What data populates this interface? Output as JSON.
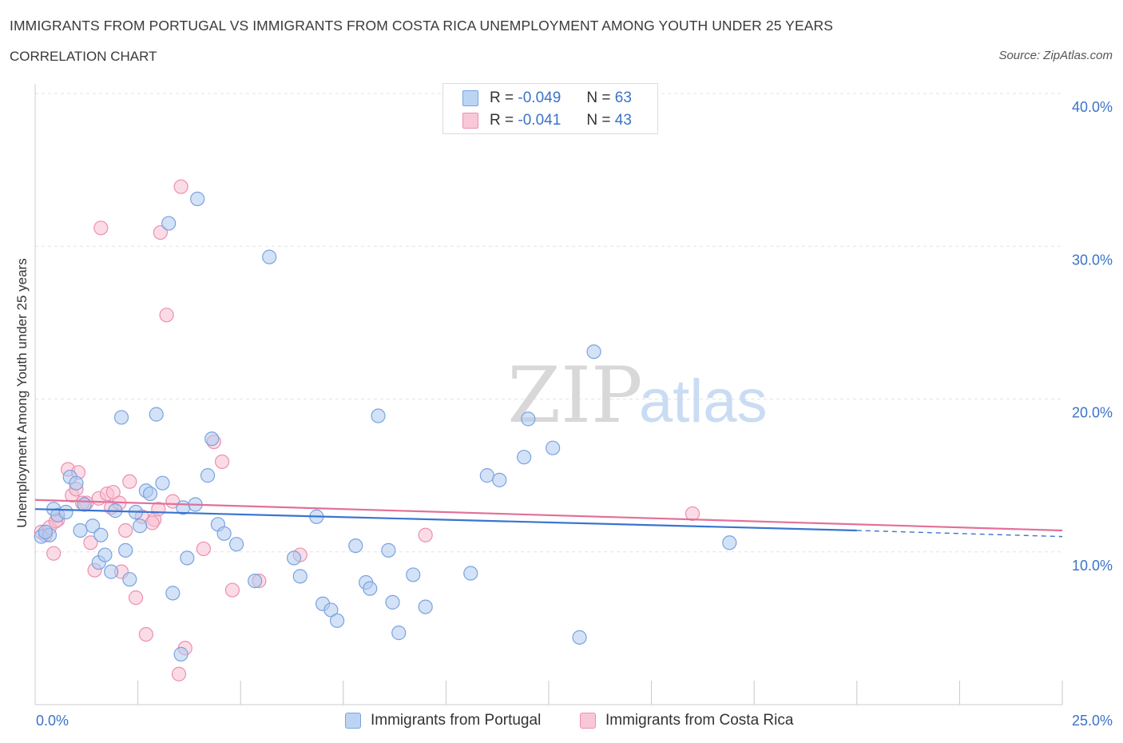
{
  "header": {
    "title": "IMMIGRANTS FROM PORTUGAL VS IMMIGRANTS FROM COSTA RICA UNEMPLOYMENT AMONG YOUTH UNDER 25 YEARS",
    "subtitle": "CORRELATION CHART",
    "source": "Source: ZipAtlas.com"
  },
  "legend_stats": {
    "blue": {
      "r_label": "R =",
      "r_value": "-0.049",
      "n_label": "N =",
      "n_value": "63"
    },
    "pink": {
      "r_label": "R =",
      "r_value": "-0.041",
      "n_label": "N =",
      "n_value": "43"
    }
  },
  "bottom_legend": {
    "blue": "Immigrants from Portugal",
    "pink": "Immigrants from Costa Rica"
  },
  "colors": {
    "blue_fill": "#aecbf0",
    "blue_stroke": "#7aa3e0",
    "blue_line": "#3a74d0",
    "pink_fill": "#f7bfd1",
    "pink_stroke": "#ec8fae",
    "pink_line": "#e2709a",
    "axis_text": "#3b73c8"
  },
  "chart_data": {
    "type": "scatter",
    "title": "IMMIGRANTS FROM PORTUGAL VS IMMIGRANTS FROM COSTA RICA UNEMPLOYMENT AMONG YOUTH UNDER 25 YEARS",
    "xlabel": "",
    "ylabel": "Unemployment Among Youth under 25 years",
    "xlim": [
      0,
      25
    ],
    "ylim": [
      0,
      40
    ],
    "x_tick_labels": [
      "0.0%",
      "25.0%"
    ],
    "y_ticks": [
      10,
      20,
      30,
      40
    ],
    "y_tick_labels": [
      "10.0%",
      "20.0%",
      "30.0%",
      "40.0%"
    ],
    "grid": true,
    "legend_position": "top-center",
    "watermark": "ZIPatlas",
    "series": [
      {
        "name": "Immigrants from Portugal",
        "color": "blue",
        "trend": {
          "x": [
            0,
            20
          ],
          "y": [
            12.8,
            11.4
          ],
          "dashed_extension_to": 25,
          "dashed_y_end": 11.0
        },
        "points": [
          [
            0.15,
            11.0
          ],
          [
            0.35,
            11.1
          ],
          [
            0.45,
            12.8
          ],
          [
            0.55,
            12.4
          ],
          [
            0.75,
            12.6
          ],
          [
            0.85,
            14.9
          ],
          [
            1.0,
            14.5
          ],
          [
            1.1,
            11.4
          ],
          [
            1.2,
            13.1
          ],
          [
            1.4,
            11.7
          ],
          [
            1.55,
            9.3
          ],
          [
            1.6,
            11.1
          ],
          [
            1.7,
            9.8
          ],
          [
            1.85,
            8.7
          ],
          [
            1.95,
            12.7
          ],
          [
            2.1,
            18.8
          ],
          [
            2.2,
            10.1
          ],
          [
            2.3,
            8.2
          ],
          [
            2.45,
            12.6
          ],
          [
            2.55,
            11.7
          ],
          [
            2.7,
            14.0
          ],
          [
            2.8,
            13.8
          ],
          [
            2.95,
            19.0
          ],
          [
            3.1,
            14.5
          ],
          [
            3.25,
            31.5
          ],
          [
            3.35,
            7.3
          ],
          [
            3.55,
            3.3
          ],
          [
            3.6,
            12.9
          ],
          [
            3.7,
            9.6
          ],
          [
            3.9,
            13.1
          ],
          [
            3.95,
            33.1
          ],
          [
            4.2,
            15.0
          ],
          [
            4.3,
            17.4
          ],
          [
            4.45,
            11.8
          ],
          [
            4.6,
            11.2
          ],
          [
            4.9,
            10.5
          ],
          [
            5.35,
            8.1
          ],
          [
            5.7,
            29.3
          ],
          [
            6.3,
            9.6
          ],
          [
            6.45,
            8.4
          ],
          [
            6.85,
            12.3
          ],
          [
            7.0,
            6.6
          ],
          [
            7.2,
            6.2
          ],
          [
            7.35,
            5.5
          ],
          [
            7.8,
            10.4
          ],
          [
            8.05,
            8.0
          ],
          [
            8.15,
            7.6
          ],
          [
            8.35,
            18.9
          ],
          [
            8.6,
            10.1
          ],
          [
            8.7,
            6.7
          ],
          [
            8.85,
            4.7
          ],
          [
            9.2,
            8.5
          ],
          [
            9.5,
            6.4
          ],
          [
            10.6,
            8.6
          ],
          [
            11.0,
            15.0
          ],
          [
            11.3,
            14.7
          ],
          [
            11.9,
            16.2
          ],
          [
            12.0,
            18.7
          ],
          [
            12.6,
            16.8
          ],
          [
            13.25,
            4.4
          ],
          [
            13.6,
            23.1
          ],
          [
            16.9,
            10.6
          ],
          [
            0.25,
            11.3
          ]
        ]
      },
      {
        "name": "Immigrants from Costa Rica",
        "color": "pink",
        "trend": {
          "x": [
            0,
            25
          ],
          "y": [
            13.4,
            11.4
          ]
        },
        "points": [
          [
            0.15,
            11.3
          ],
          [
            0.25,
            11.1
          ],
          [
            0.35,
            11.6
          ],
          [
            0.45,
            9.9
          ],
          [
            0.55,
            12.1
          ],
          [
            0.8,
            15.4
          ],
          [
            0.9,
            13.7
          ],
          [
            1.0,
            14.1
          ],
          [
            1.05,
            15.2
          ],
          [
            1.25,
            13.2
          ],
          [
            1.35,
            10.6
          ],
          [
            1.45,
            8.8
          ],
          [
            1.55,
            13.5
          ],
          [
            1.6,
            31.2
          ],
          [
            1.75,
            13.8
          ],
          [
            1.85,
            12.9
          ],
          [
            1.9,
            13.9
          ],
          [
            2.05,
            13.2
          ],
          [
            2.1,
            8.7
          ],
          [
            2.2,
            11.4
          ],
          [
            2.3,
            14.6
          ],
          [
            2.45,
            7.0
          ],
          [
            2.6,
            12.3
          ],
          [
            2.7,
            4.6
          ],
          [
            2.9,
            12.1
          ],
          [
            3.0,
            12.8
          ],
          [
            3.05,
            30.9
          ],
          [
            3.2,
            25.5
          ],
          [
            3.35,
            13.3
          ],
          [
            3.5,
            2.0
          ],
          [
            3.55,
            33.9
          ],
          [
            3.65,
            3.7
          ],
          [
            4.1,
            10.2
          ],
          [
            4.35,
            17.2
          ],
          [
            4.55,
            15.9
          ],
          [
            4.8,
            7.5
          ],
          [
            5.45,
            8.1
          ],
          [
            6.45,
            9.8
          ],
          [
            9.5,
            11.1
          ],
          [
            16.0,
            12.5
          ],
          [
            0.5,
            12.0
          ],
          [
            1.15,
            13.2
          ],
          [
            2.85,
            11.9
          ]
        ]
      }
    ]
  }
}
